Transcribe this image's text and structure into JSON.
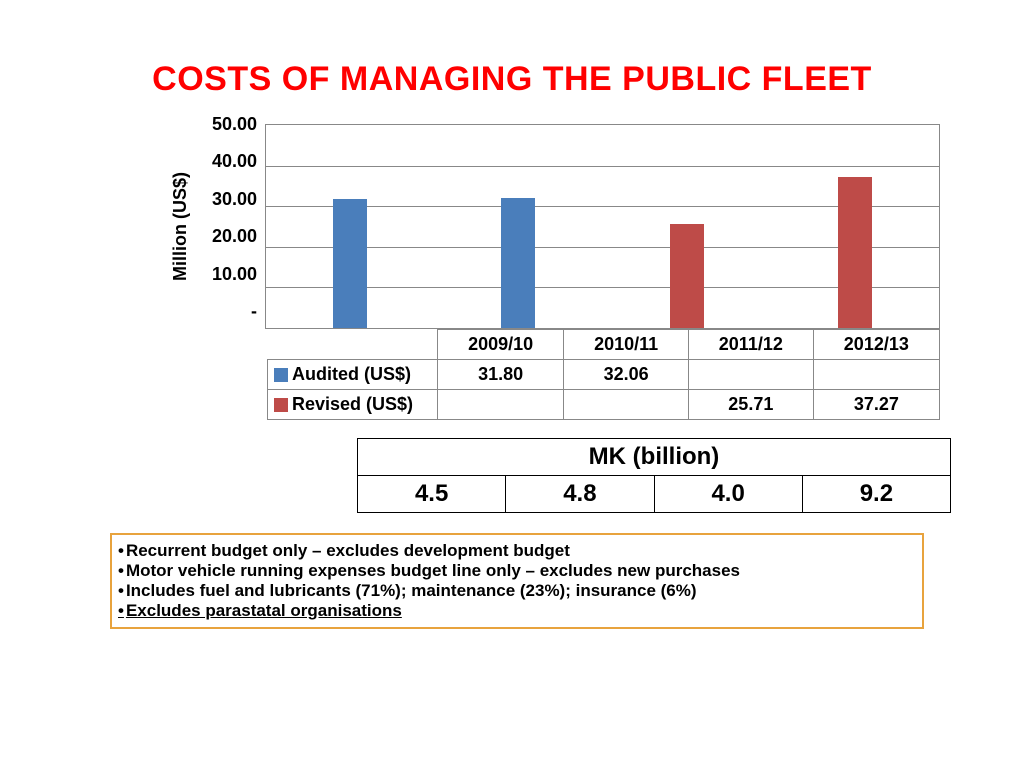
{
  "title": "COSTS OF MANAGING THE PUBLIC FLEET",
  "chart": {
    "type": "bar",
    "y_axis_label": "Million (US$)",
    "ylim": [
      0,
      50
    ],
    "ytick_step": 10,
    "y_ticks": [
      "50.00",
      "40.00",
      "30.00",
      "20.00",
      "10.00",
      "-"
    ],
    "grid_color": "#888888",
    "background_color": "#ffffff",
    "bar_width_pct": 34,
    "categories": [
      "2009/10",
      "2010/11",
      "2011/12",
      "2012/13"
    ],
    "series": [
      {
        "name": "Audited (US$)",
        "color": "#4a7ebb",
        "values": [
          31.8,
          32.06,
          null,
          null
        ],
        "display": [
          "31.80",
          "32.06",
          "",
          ""
        ]
      },
      {
        "name": "Revised (US$)",
        "color": "#be4b48",
        "values": [
          null,
          null,
          25.71,
          37.27
        ],
        "display": [
          "",
          "",
          "25.71",
          "37.27"
        ]
      }
    ],
    "title_fontsize": 34,
    "label_fontsize": 18,
    "tick_fontsize": 18
  },
  "mk_table": {
    "header": "MK (billion)",
    "values": [
      "4.5",
      "4.8",
      "4.0",
      "9.2"
    ]
  },
  "notes": {
    "border_color": "#e8a33d",
    "items": [
      "Recurrent budget only – excludes development budget",
      "Motor vehicle running expenses budget line only – excludes new purchases",
      "Includes fuel and lubricants (71%); maintenance (23%); insurance (6%)",
      "Excludes parastatal organisations"
    ]
  }
}
